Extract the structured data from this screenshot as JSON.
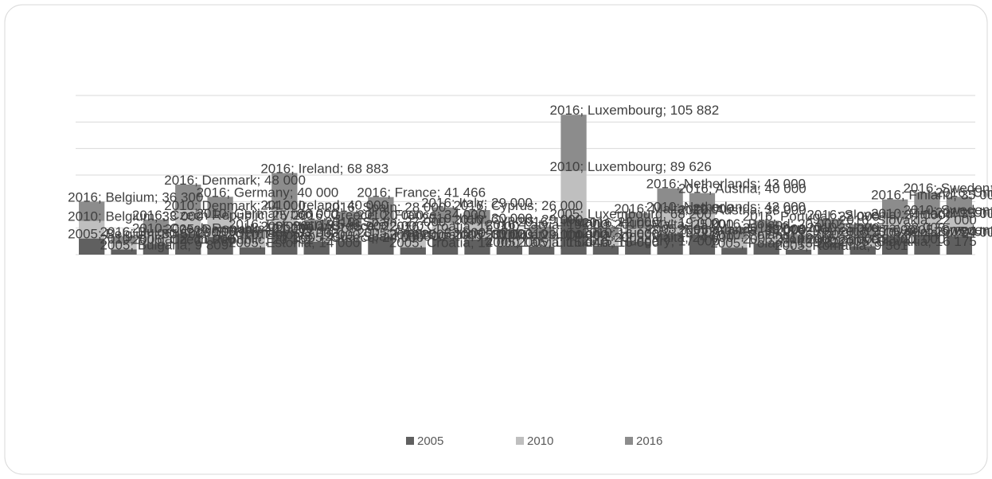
{
  "chart_data": {
    "type": "stacked_bar",
    "categories": [
      "Belgium",
      "Bulgaria",
      "Czech Republic",
      "Denmark",
      "Germany",
      "Estonia",
      "Ireland",
      "Greece",
      "Spain",
      "France",
      "Croatia",
      "Italy",
      "Cyprus",
      "Latvia",
      "Lithuania",
      "Luxembourg",
      "Hungary",
      "Malta",
      "Netherlands",
      "Austria",
      "Poland",
      "Portugal",
      "Romania",
      "Slovenia",
      "Slovakia",
      "Finland",
      "Sweden",
      "United Kingdom"
    ],
    "series": [
      {
        "name": "2005",
        "color": "#606060",
        "values": [
          30500,
          9809,
          20362,
          40000,
          33000,
          14000,
          45000,
          24000,
          26000,
          33000,
          14000,
          30000,
          29000,
          15040,
          15000,
          68200,
          17000,
          24000,
          40000,
          38000,
          13282,
          21000,
          9361,
          21000,
          16175,
          34000,
          38000,
          35000
        ],
        "value_labels": [
          "30 500",
          "9 809",
          "20 362",
          "40 000",
          "33 000",
          "14 000",
          "45 000",
          "24 000",
          "26 000",
          "33 000",
          "14 000",
          "30 000",
          "29 000",
          "15 040",
          "15 000",
          "68 200",
          "17 000",
          "24 000",
          "40 000",
          "38 000",
          "13 282",
          "21 000",
          "9 361",
          "21 000",
          "16 175",
          "34 000",
          "38 000",
          "35 000"
        ]
      },
      {
        "name": "2010",
        "color": "#bfbfbf",
        "values": [
          33000,
          11000,
          21000,
          44000,
          36000,
          15000,
          40000,
          22000,
          27000,
          34000,
          15000,
          30000,
          29000,
          14000,
          16000,
          89626,
          16000,
          25000,
          42000,
          38000,
          16000,
          21000,
          12000,
          22000,
          19000,
          35000,
          38000,
          36000
        ],
        "value_labels": [
          "33 000",
          "11 000",
          "21 000",
          "44 000",
          "36 000",
          "15 000",
          "40 000",
          "22 000",
          "27 000",
          "34 000",
          "15 000",
          "30 000",
          "29 000",
          "14 000",
          "16 000",
          "89 626",
          "16 000",
          "25 000",
          "42 000",
          "38 000",
          "16 000",
          "21 000",
          "12 000",
          "22 000",
          "19 000",
          "35 000",
          "38 000",
          "36 000"
        ]
      },
      {
        "name": "2016",
        "color": "#8c8c8c",
        "values": [
          36300,
          13500,
          25000,
          48000,
          40000,
          19548,
          68883,
          20000,
          28000,
          41466,
          16000,
          29000,
          26000,
          19000,
          22000,
          105882,
          19000,
          29000,
          43000,
          40000,
          20000,
          22000,
          17000,
          24000,
          22000,
          35000,
          41000,
          38000
        ],
        "value_labels": [
          "36 300",
          "13 500",
          "25 000",
          "48 000",
          "40 000",
          "19 548",
          "68 883",
          "20 000",
          "28 000",
          "41 466",
          "16 000",
          "29 000",
          "26 000",
          "19 000",
          "22 000",
          "105 882",
          "19 000",
          "29 000",
          "43 000",
          "40 000",
          "20 000",
          "22 000",
          "17 000",
          "24 000",
          "22 000",
          "35 000",
          "41 000",
          "38 000"
        ]
      }
    ],
    "label_separator": "; ",
    "ylim": [
      0,
      300000
    ],
    "yticks": [
      0,
      50000,
      100000,
      150000,
      200000,
      250000,
      300000
    ],
    "grid": true,
    "legend": "bottom"
  }
}
